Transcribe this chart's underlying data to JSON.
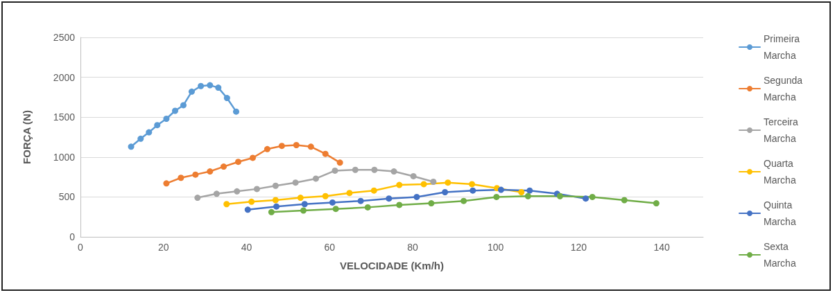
{
  "chart_data": {
    "type": "line",
    "xlabel": "VELOCIDADE (Km/h)",
    "ylabel": "FORÇA (N)",
    "xlim": [
      0,
      150
    ],
    "xticks": [
      0,
      20,
      40,
      60,
      80,
      100,
      120,
      140
    ],
    "ylim": [
      0,
      2500
    ],
    "yticks": [
      0,
      500,
      1000,
      1500,
      2000,
      2500
    ],
    "grid": "y",
    "legend": "right",
    "marker": "circle",
    "line_style": "solid",
    "series": [
      {
        "name": "Primeira Marcha",
        "color": "#5b9bd5",
        "x": [
          12.2,
          14.5,
          16.5,
          18.5,
          20.7,
          22.8,
          24.8,
          26.8,
          29,
          31.2,
          33.2,
          35.3,
          37.5
        ],
        "values": [
          1130,
          1230,
          1310,
          1400,
          1480,
          1580,
          1650,
          1820,
          1890,
          1900,
          1870,
          1740,
          1570
        ]
      },
      {
        "name": "Segunda Marcha",
        "color": "#ed7d31",
        "x": [
          20.7,
          24.2,
          27.7,
          31.2,
          34.5,
          38,
          41.5,
          45,
          48.5,
          52,
          55.5,
          59,
          62.5
        ],
        "values": [
          670,
          740,
          780,
          820,
          880,
          940,
          990,
          1100,
          1140,
          1150,
          1130,
          1040,
          930
        ]
      },
      {
        "name": "Terceira Marcha",
        "color": "#a5a5a5",
        "x": [
          28.2,
          32.8,
          37.7,
          42.5,
          47,
          51.8,
          56.7,
          61.3,
          66.2,
          70.8,
          75.5,
          80.2,
          85
        ],
        "values": [
          490,
          540,
          570,
          600,
          640,
          680,
          730,
          830,
          840,
          840,
          820,
          760,
          690
        ]
      },
      {
        "name": "Quarta Marcha",
        "color": "#ffc000",
        "x": [
          35.2,
          41.2,
          47,
          53,
          59,
          64.8,
          70.7,
          76.8,
          82.7,
          88.5,
          94.3,
          100.3,
          106.2
        ],
        "values": [
          410,
          440,
          460,
          490,
          510,
          550,
          580,
          650,
          660,
          680,
          660,
          610,
          560
        ]
      },
      {
        "name": "Quinta Marcha",
        "color": "#4472c4",
        "x": [
          40.3,
          47.2,
          54,
          60.7,
          67.5,
          74.3,
          81,
          87.8,
          94.5,
          101.3,
          108.2,
          114.8,
          121.7
        ],
        "values": [
          340,
          380,
          410,
          430,
          450,
          480,
          500,
          560,
          580,
          590,
          580,
          540,
          480
        ]
      },
      {
        "name": "Sexta Marcha",
        "color": "#70ad47",
        "x": [
          46,
          53.7,
          61.5,
          69.2,
          76.8,
          84.5,
          92.3,
          100.2,
          107.8,
          115.5,
          123.3,
          131,
          138.7
        ],
        "values": [
          310,
          330,
          350,
          370,
          400,
          420,
          450,
          500,
          510,
          510,
          500,
          460,
          420
        ]
      }
    ]
  }
}
